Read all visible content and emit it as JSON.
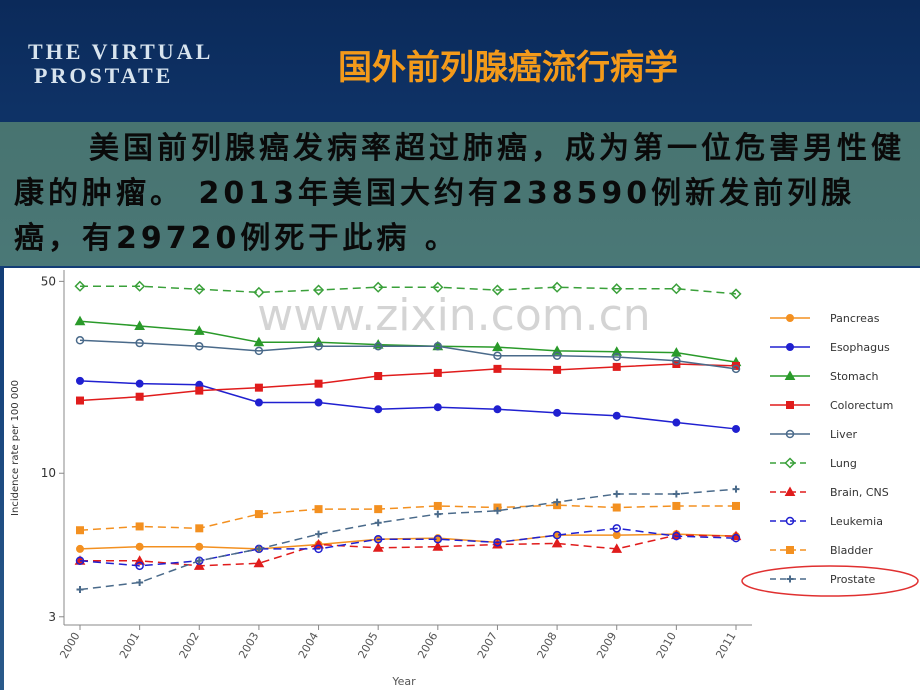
{
  "header": {
    "logo": [
      "The Virtual",
      "Prostate"
    ],
    "title": "国外前列腺癌流行病学"
  },
  "paragraph": "美国前列腺癌发病率超过肺癌，成为第一位危害男性健康的肿瘤。 2013年美国大约有238590例新发前列腺癌，有29720例死于此病 。",
  "watermark": "www.zixin.com.cn",
  "chart_data": {
    "type": "line",
    "log_y": true,
    "x_label": "Year",
    "y_label": "Incidence rate per 100 000",
    "categories": [
      "2000",
      "2001",
      "2002",
      "2003",
      "2004",
      "2005",
      "2006",
      "2007",
      "2008",
      "2009",
      "2010",
      "2011"
    ],
    "ylim": [
      2.8,
      55
    ],
    "yticks": [
      3,
      10,
      50
    ],
    "series": [
      {
        "name": "Pancreas",
        "color": "#f39020",
        "dash": false,
        "marker": "circle",
        "values": [
          5.3,
          5.4,
          5.4,
          5.3,
          5.5,
          5.75,
          5.8,
          5.6,
          5.95,
          5.95,
          6,
          5.9
        ]
      },
      {
        "name": "Esophagus",
        "color": "#2020d0",
        "dash": false,
        "marker": "circle",
        "values": [
          21.7,
          21.2,
          21,
          18.1,
          18.1,
          17.1,
          17.4,
          17.1,
          16.6,
          16.2,
          15.3,
          14.5
        ]
      },
      {
        "name": "Stomach",
        "color": "#2a9a2a",
        "dash": false,
        "marker": "triangle",
        "values": [
          35.8,
          34.4,
          33,
          30,
          30,
          29.4,
          29,
          28.8,
          27.9,
          27.7,
          27.5,
          25.4
        ]
      },
      {
        "name": "Colorectum",
        "color": "#e01c1c",
        "dash": false,
        "marker": "square",
        "values": [
          18.4,
          19,
          20,
          20.5,
          21.2,
          22.6,
          23.2,
          24,
          23.8,
          24.4,
          25,
          24.6
        ]
      },
      {
        "name": "Liver",
        "color": "#4a6a8a",
        "dash": false,
        "marker": "ring",
        "values": [
          30.5,
          29.8,
          29,
          27.9,
          29,
          29,
          29,
          26.8,
          26.8,
          26.5,
          25.7,
          24
        ]
      },
      {
        "name": "Lung",
        "color": "#3aa03a",
        "dash": true,
        "marker": "diamond",
        "values": [
          48,
          48,
          46.8,
          45.6,
          46.5,
          47.6,
          47.6,
          46.5,
          47.6,
          47,
          47,
          45
        ]
      },
      {
        "name": "Brain, CNS",
        "color": "#e01c1c",
        "dash": true,
        "marker": "triangle",
        "values": [
          4.8,
          4.8,
          4.6,
          4.7,
          5.5,
          5.35,
          5.4,
          5.5,
          5.55,
          5.3,
          5.95,
          5.9
        ]
      },
      {
        "name": "Leukemia",
        "color": "#2020d0",
        "dash": true,
        "marker": "ring",
        "values": [
          4.8,
          4.6,
          4.8,
          5.3,
          5.3,
          5.75,
          5.75,
          5.6,
          5.95,
          6.3,
          5.9,
          5.8
        ]
      },
      {
        "name": "Bladder",
        "color": "#f39020",
        "dash": true,
        "marker": "square",
        "values": [
          6.2,
          6.4,
          6.3,
          7.1,
          7.4,
          7.4,
          7.6,
          7.5,
          7.65,
          7.5,
          7.6,
          7.6
        ]
      },
      {
        "name": "Prostate",
        "color": "#4a6a8a",
        "dash": true,
        "marker": "plus",
        "values": [
          3.77,
          4,
          4.8,
          5.3,
          6,
          6.6,
          7.1,
          7.3,
          7.85,
          8.4,
          8.4,
          8.75
        ]
      }
    ]
  }
}
